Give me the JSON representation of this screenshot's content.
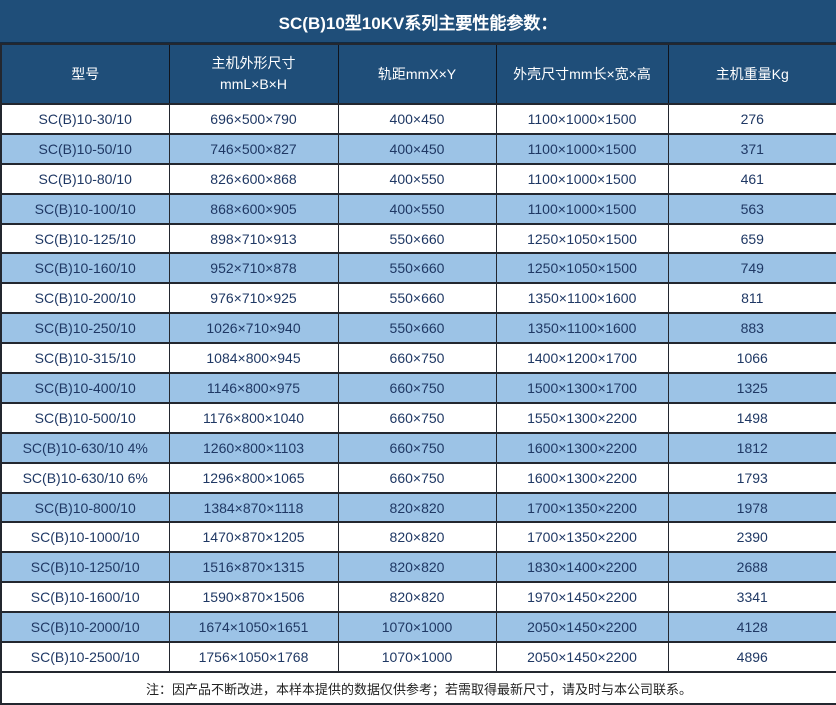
{
  "title": "SC(B)10型10KV系列主要性能参数：",
  "colors": {
    "header_bg": "#1F4E79",
    "row_alt_bg": "#9CC3E6",
    "row_bg": "#FFFFFF",
    "header_text": "#FFFFFF",
    "cell_text": "#1F3864",
    "border": "#23272F"
  },
  "table": {
    "columns": [
      {
        "label": "型号",
        "sub": ""
      },
      {
        "label": "主机外形尺寸",
        "sub": "mmL×B×H"
      },
      {
        "label": "轨距mmX×Y",
        "sub": ""
      },
      {
        "label": "外壳尺寸mm长×宽×高",
        "sub": ""
      },
      {
        "label": "主机重量Kg",
        "sub": ""
      }
    ],
    "rows": [
      [
        "SC(B)10-30/10",
        "696×500×790",
        "400×450",
        "1100×1000×1500",
        "276"
      ],
      [
        "SC(B)10-50/10",
        "746×500×827",
        "400×450",
        "1100×1000×1500",
        "371"
      ],
      [
        "SC(B)10-80/10",
        "826×600×868",
        "400×550",
        "1100×1000×1500",
        "461"
      ],
      [
        "SC(B)10-100/10",
        "868×600×905",
        "400×550",
        "1100×1000×1500",
        "563"
      ],
      [
        "SC(B)10-125/10",
        "898×710×913",
        "550×660",
        "1250×1050×1500",
        "659"
      ],
      [
        "SC(B)10-160/10",
        "952×710×878",
        "550×660",
        "1250×1050×1500",
        "749"
      ],
      [
        "SC(B)10-200/10",
        "976×710×925",
        "550×660",
        "1350×1100×1600",
        "811"
      ],
      [
        "SC(B)10-250/10",
        "1026×710×940",
        "550×660",
        "1350×1100×1600",
        "883"
      ],
      [
        "SC(B)10-315/10",
        "1084×800×945",
        "660×750",
        "1400×1200×1700",
        "1066"
      ],
      [
        "SC(B)10-400/10",
        "1146×800×975",
        "660×750",
        "1500×1300×1700",
        "1325"
      ],
      [
        "SC(B)10-500/10",
        "1176×800×1040",
        "660×750",
        "1550×1300×2200",
        "1498"
      ],
      [
        "SC(B)10-630/10 4%",
        "1260×800×1103",
        "660×750",
        "1600×1300×2200",
        "1812"
      ],
      [
        "SC(B)10-630/10 6%",
        "1296×800×1065",
        "660×750",
        "1600×1300×2200",
        "1793"
      ],
      [
        "SC(B)10-800/10",
        "1384×870×1118",
        "820×820",
        "1700×1350×2200",
        "1978"
      ],
      [
        "SC(B)10-1000/10",
        "1470×870×1205",
        "820×820",
        "1700×1350×2200",
        "2390"
      ],
      [
        "SC(B)10-1250/10",
        "1516×870×1315",
        "820×820",
        "1830×1400×2200",
        "2688"
      ],
      [
        "SC(B)10-1600/10",
        "1590×870×1506",
        "820×820",
        "1970×1450×2200",
        "3341"
      ],
      [
        "SC(B)10-2000/10",
        "1674×1050×1651",
        "1070×1000",
        "2050×1450×2200",
        "4128"
      ],
      [
        "SC(B)10-2500/10",
        "1756×1050×1768",
        "1070×1000",
        "2050×1450×2200",
        "4896"
      ]
    ]
  },
  "footer_note": "注：因产品不断改进，本样本提供的数据仅供参考；若需取得最新尺寸，请及时与本公司联系。"
}
